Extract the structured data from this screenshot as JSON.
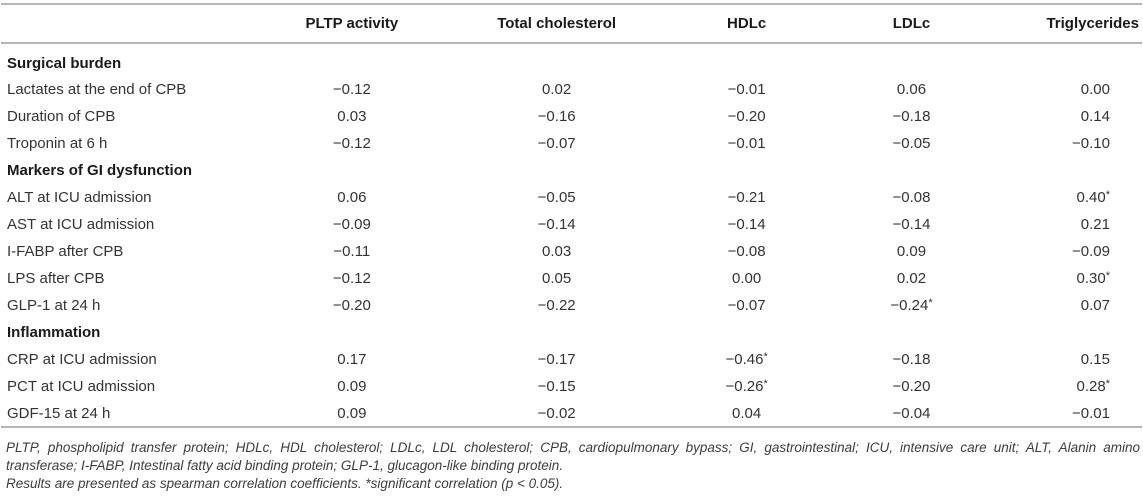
{
  "table": {
    "columns": [
      "",
      "PLTP activity",
      "Total cholesterol",
      "HDLc",
      "LDLc",
      "Triglycerides"
    ],
    "sections": [
      {
        "header": "Surgical burden",
        "rows": [
          {
            "label": "Lactates at the end of CPB",
            "values": [
              "−0.12",
              "0.02",
              "−0.01",
              "0.06",
              "0.00"
            ]
          },
          {
            "label": "Duration of CPB",
            "values": [
              "0.03",
              "−0.16",
              "−0.20",
              "−0.18",
              "0.14"
            ]
          },
          {
            "label": "Troponin at 6 h",
            "values": [
              "−0.12",
              "−0.07",
              "−0.01",
              "−0.05",
              "−0.10"
            ]
          }
        ]
      },
      {
        "header": "Markers of GI dysfunction",
        "rows": [
          {
            "label": "ALT at ICU admission",
            "values": [
              "0.06",
              "−0.05",
              "−0.21",
              "−0.08",
              "0.40*"
            ]
          },
          {
            "label": "AST at ICU admission",
            "values": [
              "−0.09",
              "−0.14",
              "−0.14",
              "−0.14",
              "0.21"
            ]
          },
          {
            "label": "I-FABP after CPB",
            "values": [
              "−0.11",
              "0.03",
              "−0.08",
              "0.09",
              "−0.09"
            ]
          },
          {
            "label": "LPS after CPB",
            "values": [
              "−0.12",
              "0.05",
              "0.00",
              "0.02",
              "0.30*"
            ]
          },
          {
            "label": "GLP-1 at 24 h",
            "values": [
              "−0.20",
              "−0.22",
              "−0.07",
              "−0.24*",
              "0.07"
            ]
          }
        ]
      },
      {
        "header": "Inflammation",
        "rows": [
          {
            "label": "CRP at ICU admission",
            "values": [
              "0.17",
              "−0.17",
              "−0.46*",
              "−0.18",
              "0.15"
            ]
          },
          {
            "label": "PCT at ICU admission",
            "values": [
              "0.09",
              "−0.15",
              "−0.26*",
              "−0.20",
              "0.28*"
            ]
          },
          {
            "label": "GDF-15 at 24 h",
            "values": [
              "0.09",
              "−0.02",
              "0.04",
              "−0.04",
              "−0.01"
            ]
          }
        ]
      }
    ]
  },
  "footnotes": {
    "abbreviations": "PLTP, phospholipid transfer protein; HDLc, HDL cholesterol; LDLc, LDL cholesterol; CPB, cardiopulmonary bypass; GI, gastrointestinal; ICU, intensive care unit; ALT, Alanin amino transferase; I-FABP, Intestinal fatty acid binding protein; GLP-1, glucagon-like binding protein.",
    "note": "Results are presented as spearman correlation coefficients. *significant correlation (p < 0.05)."
  },
  "colors": {
    "rule_gray": "#b5b5b5",
    "header_text": "#1a1a1a",
    "body_text": "#333333",
    "footnote_text": "#3d3d3d",
    "background": "#ffffff"
  }
}
